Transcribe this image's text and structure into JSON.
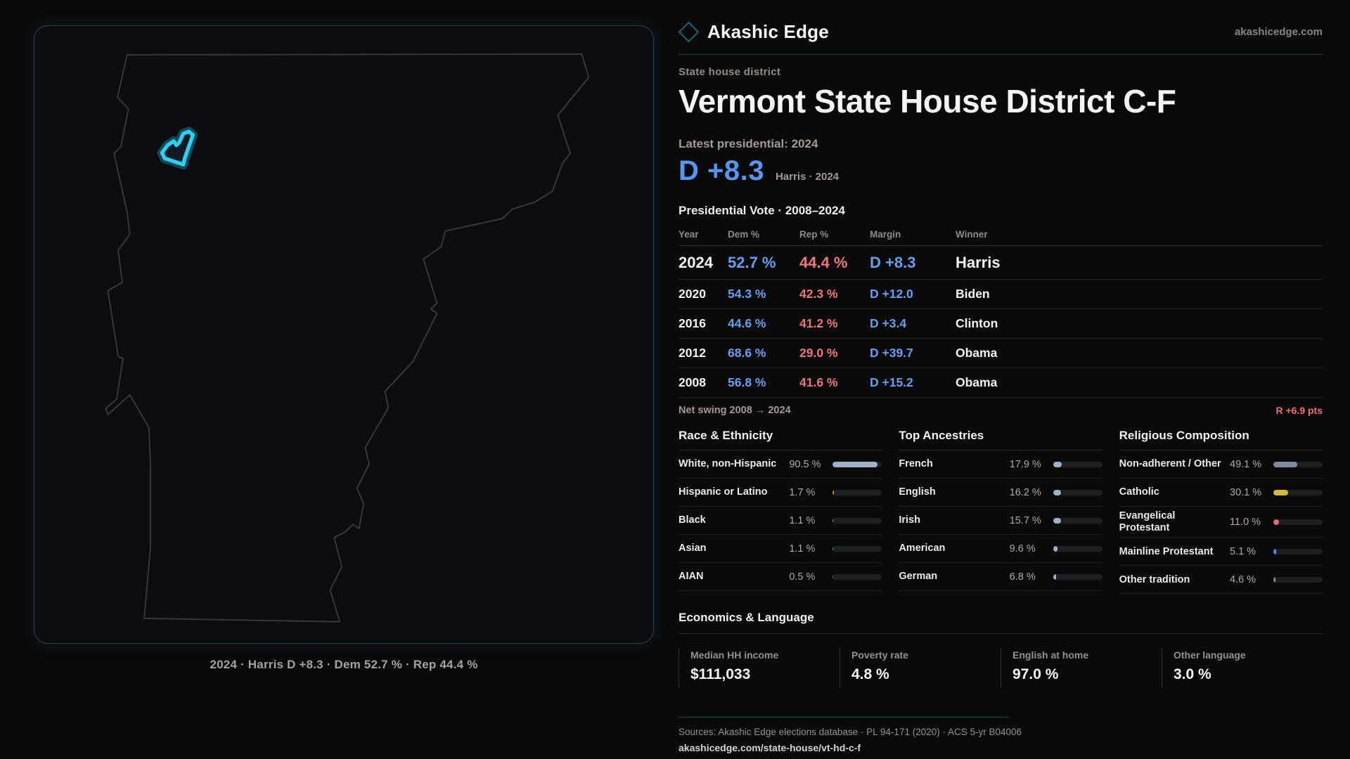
{
  "header": {
    "brand": "Akashic Edge",
    "domain": "akashicedge.com"
  },
  "district": {
    "eyebrow": "State house district",
    "title": "Vermont State House District C-F"
  },
  "latest": {
    "label": "Latest presidential: 2024",
    "margin": "D +8.3",
    "sub": "Harris · 2024"
  },
  "vote": {
    "title": "Presidential Vote · 2008–2024",
    "columns": {
      "year": "Year",
      "dem": "Dem %",
      "rep": "Rep %",
      "margin": "Margin",
      "winner": "Winner"
    },
    "rows": [
      {
        "year": "2024",
        "dem": "52.7 %",
        "rep": "44.4 %",
        "margin": "D +8.3",
        "winner": "Harris"
      },
      {
        "year": "2020",
        "dem": "54.3 %",
        "rep": "42.3 %",
        "margin": "D +12.0",
        "winner": "Biden"
      },
      {
        "year": "2016",
        "dem": "44.6 %",
        "rep": "41.2 %",
        "margin": "D +3.4",
        "winner": "Clinton"
      },
      {
        "year": "2012",
        "dem": "68.6 %",
        "rep": "29.0 %",
        "margin": "D +39.7",
        "winner": "Obama"
      },
      {
        "year": "2008",
        "dem": "56.8 %",
        "rep": "41.6 %",
        "margin": "D +15.2",
        "winner": "Obama"
      }
    ],
    "net_swing": {
      "label": "Net swing 2008 → 2024",
      "value": "R +6.9 pts"
    }
  },
  "demographics": {
    "race": {
      "title": "Race & Ethnicity",
      "rows": [
        {
          "label": "White, non-Hispanic",
          "value": "90.5 %",
          "pct": 90.5,
          "color": "#9db1c9"
        },
        {
          "label": "Hispanic or Latino",
          "value": "1.7 %",
          "pct": 1.7,
          "color": "#cc8a33"
        },
        {
          "label": "Black",
          "value": "1.1 %",
          "pct": 1.1,
          "color": "#9186d8"
        },
        {
          "label": "Asian",
          "value": "1.1 %",
          "pct": 1.1,
          "color": "#35b5a0"
        },
        {
          "label": "AIAN",
          "value": "0.5 %",
          "pct": 0.5,
          "color": "#6b6b6b"
        }
      ]
    },
    "ancestries": {
      "title": "Top Ancestries",
      "rows": [
        {
          "label": "French",
          "value": "17.9 %",
          "pct": 17.9,
          "color": "#9db1c9"
        },
        {
          "label": "English",
          "value": "16.2 %",
          "pct": 16.2,
          "color": "#9db1c9"
        },
        {
          "label": "Irish",
          "value": "15.7 %",
          "pct": 15.7,
          "color": "#9db1c9"
        },
        {
          "label": "American",
          "value": "9.6 %",
          "pct": 9.6,
          "color": "#9db1c9"
        },
        {
          "label": "German",
          "value": "6.8 %",
          "pct": 6.8,
          "color": "#9db1c9"
        }
      ]
    },
    "religion": {
      "title": "Religious Composition",
      "rows": [
        {
          "label": "Non-adherent / Other",
          "value": "49.1 %",
          "pct": 49.1,
          "color": "#7d8aa0"
        },
        {
          "label": "Catholic",
          "value": "30.1 %",
          "pct": 30.1,
          "color": "#d9b832"
        },
        {
          "label": "Evangelical Protestant",
          "value": "11.0 %",
          "pct": 11.0,
          "color": "#dd7070"
        },
        {
          "label": "Mainline Protestant",
          "value": "5.1 %",
          "pct": 5.1,
          "color": "#4d8fe0"
        },
        {
          "label": "Other tradition",
          "value": "4.6 %",
          "pct": 4.6,
          "color": "#8a8a8a"
        }
      ]
    }
  },
  "economics": {
    "title": "Economics & Language",
    "stats": [
      {
        "label": "Median HH income",
        "value": "$111,033"
      },
      {
        "label": "Poverty rate",
        "value": "4.8 %"
      },
      {
        "label": "English at home",
        "value": "97.0 %"
      },
      {
        "label": "Other language",
        "value": "3.0 %"
      }
    ]
  },
  "map": {
    "caption": "2024 · Harris D +8.3 · Dem 52.7 % · Rep 44.4 %"
  },
  "footer": {
    "sources": "Sources: Akashic Edge elections database · PL 94-171 (2020) · ACS 5-yr B04006",
    "url": "akashicedge.com/state-house/vt-hd-c-f"
  },
  "colors": {
    "accent_teal": "#1d4b54",
    "district_highlight": "#2ad1f0",
    "dem_blue": "#64a0f0",
    "rep_red": "#f0767c",
    "swing_red": "#ef6f76",
    "bar_track": "#1e1f20"
  }
}
